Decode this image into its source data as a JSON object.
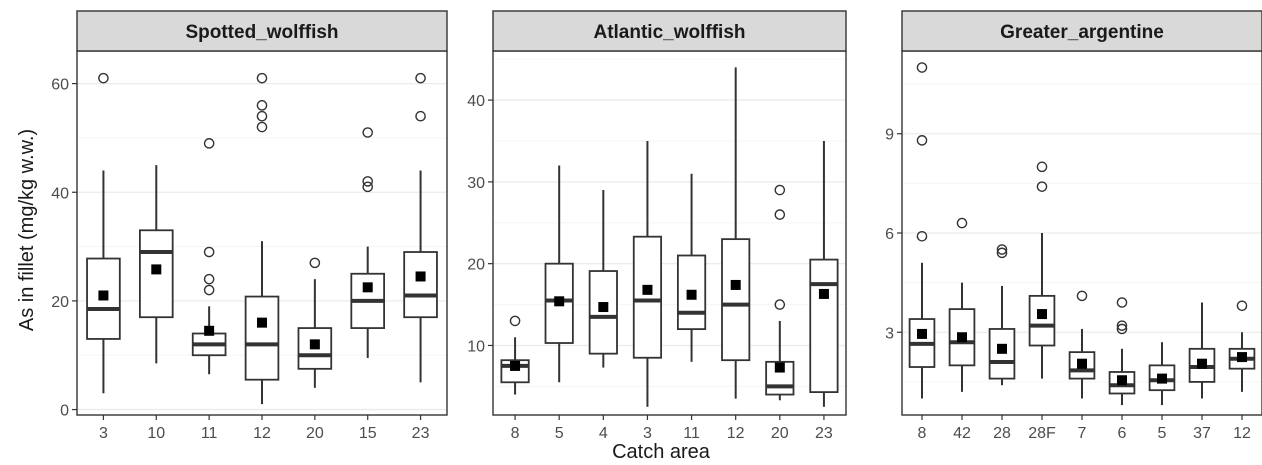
{
  "figure": {
    "ylabel": "As in fillet (mg/kg w.w.)",
    "xlabel": "Catch area"
  },
  "colors": {
    "panel_bg": "#ffffff",
    "panel_border": "#333333",
    "strip_bg": "#d9d9d9",
    "grid_major": "#ebebeb",
    "grid_minor": "#f5f5f5",
    "box": "#333333",
    "mean": "#000000",
    "tick_label": "#4d4d4d",
    "axis_title": "#1a1a1a"
  },
  "chart_data": [
    {
      "type": "box",
      "title": "Spotted_wolffish",
      "ylim": [
        -1,
        66
      ],
      "yticks": [
        0,
        20,
        40,
        60
      ],
      "ymajor": [
        0,
        20,
        40,
        60
      ],
      "yminor": [
        10,
        30,
        50
      ],
      "grid": true,
      "categories": [
        "3",
        "10",
        "11",
        "12",
        "20",
        "15",
        "23"
      ],
      "boxes": [
        {
          "low": 3,
          "q1": 13,
          "median": 18.5,
          "q3": 27.8,
          "high": 44,
          "mean": 21,
          "outliers": [
            61
          ]
        },
        {
          "low": 8.5,
          "q1": 17,
          "median": 29,
          "q3": 33,
          "high": 45,
          "mean": 25.8,
          "outliers": []
        },
        {
          "low": 6.5,
          "q1": 10,
          "median": 12,
          "q3": 14,
          "high": 19,
          "mean": 14.5,
          "outliers": [
            49,
            29,
            24,
            22
          ]
        },
        {
          "low": 1,
          "q1": 5.5,
          "median": 12,
          "q3": 20.8,
          "high": 31,
          "mean": 16,
          "outliers": [
            61,
            56,
            54,
            52
          ]
        },
        {
          "low": 4,
          "q1": 7.5,
          "median": 10,
          "q3": 15,
          "high": 24,
          "mean": 12,
          "outliers": [
            27
          ]
        },
        {
          "low": 9.5,
          "q1": 15,
          "median": 20,
          "q3": 25,
          "high": 30,
          "mean": 22.5,
          "outliers": [
            51,
            42,
            41
          ]
        },
        {
          "low": 5,
          "q1": 17,
          "median": 21,
          "q3": 29,
          "high": 44,
          "mean": 24.5,
          "outliers": [
            61,
            54
          ]
        }
      ]
    },
    {
      "type": "box",
      "title": "Atlantic_wolffish",
      "ylim": [
        1.5,
        46
      ],
      "yticks": [
        10,
        20,
        30,
        40
      ],
      "ymajor": [
        10,
        20,
        30,
        40
      ],
      "yminor": [
        5,
        15,
        25,
        35,
        45
      ],
      "grid": true,
      "categories": [
        "8",
        "5",
        "4",
        "3",
        "11",
        "12",
        "20",
        "23"
      ],
      "boxes": [
        {
          "low": 4,
          "q1": 5.5,
          "median": 7.5,
          "q3": 8.2,
          "high": 11,
          "mean": 7.5,
          "outliers": [
            13
          ]
        },
        {
          "low": 5.5,
          "q1": 10.3,
          "median": 15.5,
          "q3": 20,
          "high": 32,
          "mean": 15.4,
          "outliers": []
        },
        {
          "low": 7.3,
          "q1": 9,
          "median": 13.5,
          "q3": 19.1,
          "high": 29,
          "mean": 14.7,
          "outliers": []
        },
        {
          "low": 2.5,
          "q1": 8.5,
          "median": 15.5,
          "q3": 23.3,
          "high": 35,
          "mean": 16.8,
          "outliers": []
        },
        {
          "low": 8,
          "q1": 12,
          "median": 14,
          "q3": 21,
          "high": 31,
          "mean": 16.2,
          "outliers": []
        },
        {
          "low": 3.5,
          "q1": 8.2,
          "median": 15,
          "q3": 23,
          "high": 44,
          "mean": 17.4,
          "outliers": []
        },
        {
          "low": 3.3,
          "q1": 4,
          "median": 5,
          "q3": 8,
          "high": 13,
          "mean": 7.3,
          "outliers": [
            29,
            26,
            15
          ]
        },
        {
          "low": 2.5,
          "q1": 4.3,
          "median": 17.5,
          "q3": 20.5,
          "high": 35,
          "mean": 16.3,
          "outliers": []
        }
      ]
    },
    {
      "type": "box",
      "title": "Greater_argentine",
      "ylim": [
        0.5,
        11.5
      ],
      "yticks": [
        3,
        6,
        9
      ],
      "ymajor": [
        3,
        6,
        9
      ],
      "yminor": [
        1.5,
        4.5,
        7.5,
        10.5
      ],
      "grid": true,
      "categories": [
        "8",
        "42",
        "28",
        "28F",
        "7",
        "6",
        "5",
        "37",
        "12"
      ],
      "boxes": [
        {
          "low": 1,
          "q1": 1.95,
          "median": 2.65,
          "q3": 3.4,
          "high": 5.1,
          "mean": 2.95,
          "outliers": [
            11,
            8.8,
            5.9
          ]
        },
        {
          "low": 1.2,
          "q1": 2,
          "median": 2.7,
          "q3": 3.7,
          "high": 4.5,
          "mean": 2.85,
          "outliers": [
            6.3
          ]
        },
        {
          "low": 1.4,
          "q1": 1.6,
          "median": 2.1,
          "q3": 3.1,
          "high": 4.4,
          "mean": 2.5,
          "outliers": [
            5.5,
            5.4
          ]
        },
        {
          "low": 1.6,
          "q1": 2.6,
          "median": 3.2,
          "q3": 4.1,
          "high": 6,
          "mean": 3.55,
          "outliers": [
            8,
            7.4
          ]
        },
        {
          "low": 1,
          "q1": 1.6,
          "median": 1.85,
          "q3": 2.4,
          "high": 3.1,
          "mean": 2.05,
          "outliers": [
            4.1
          ]
        },
        {
          "low": 0.8,
          "q1": 1.15,
          "median": 1.4,
          "q3": 1.8,
          "high": 2.5,
          "mean": 1.55,
          "outliers": [
            3.9,
            3.2,
            3.1
          ]
        },
        {
          "low": 0.8,
          "q1": 1.25,
          "median": 1.55,
          "q3": 2,
          "high": 2.7,
          "mean": 1.6,
          "outliers": []
        },
        {
          "low": 1,
          "q1": 1.5,
          "median": 1.95,
          "q3": 2.5,
          "high": 3.9,
          "mean": 2.05,
          "outliers": []
        },
        {
          "low": 1.2,
          "q1": 1.9,
          "median": 2.2,
          "q3": 2.5,
          "high": 3,
          "mean": 2.25,
          "outliers": [
            3.8
          ]
        }
      ]
    }
  ]
}
